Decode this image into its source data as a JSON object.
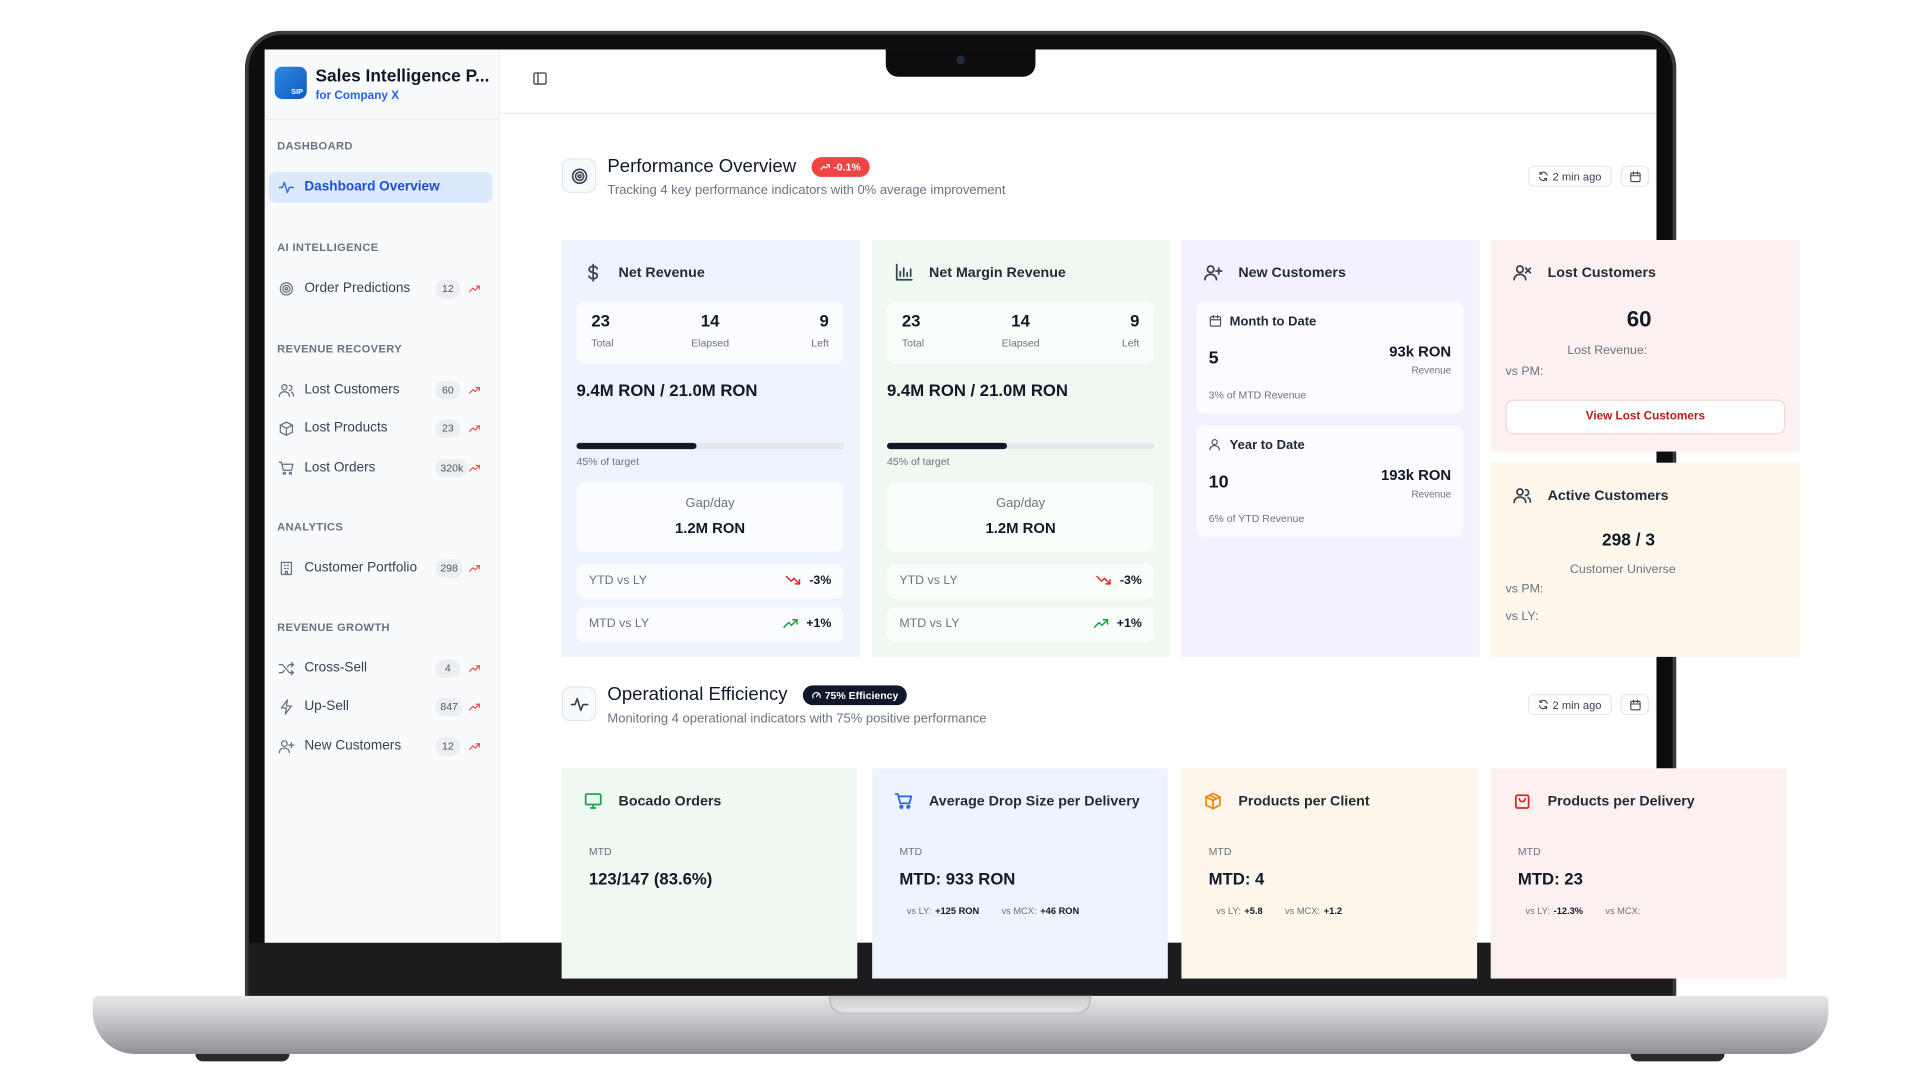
{
  "sidebar": {
    "logo": "SIP",
    "app_name": "Sales Intelligence P...",
    "subtitle": "for Company X",
    "sections": [
      {
        "title": "DASHBOARD",
        "items": [
          {
            "label": "Dashboard Overview"
          }
        ]
      },
      {
        "title": "AI INTELLIGENCE",
        "items": [
          {
            "label": "Order Predictions",
            "badge": "12"
          }
        ]
      },
      {
        "title": "REVENUE RECOVERY",
        "items": [
          {
            "label": "Lost Customers",
            "badge": "60"
          },
          {
            "label": "Lost Products",
            "badge": "23"
          },
          {
            "label": "Lost Orders",
            "badge": "320k"
          }
        ]
      },
      {
        "title": "ANALYTICS",
        "items": [
          {
            "label": "Customer Portfolio",
            "badge": "298"
          }
        ]
      },
      {
        "title": "REVENUE GROWTH",
        "items": [
          {
            "label": "Cross-Sell",
            "badge": "4"
          },
          {
            "label": "Up-Sell",
            "badge": "847"
          },
          {
            "label": "New Customers",
            "badge": "12"
          }
        ]
      }
    ]
  },
  "performance": {
    "title": "Performance Overview",
    "badge": "-0.1%",
    "subtitle": "Tracking 4 key performance indicators with 0% average improvement",
    "updated": "2 min ago",
    "net_revenue": {
      "title": "Net Revenue",
      "stats": [
        {
          "value": "23",
          "label": "Total"
        },
        {
          "value": "14",
          "label": "Elapsed"
        },
        {
          "value": "9",
          "label": "Left"
        }
      ],
      "amount": "9.4M RON / 21.0M RON",
      "progress": 45,
      "progress_label": "45% of target",
      "gap_label": "Gap/day",
      "gap_value": "1.2M RON",
      "comparisons": [
        {
          "label": "YTD vs LY",
          "value": "-3%"
        },
        {
          "label": "MTD vs LY",
          "value": "+1%"
        }
      ]
    },
    "net_margin_revenue": {
      "title": "Net Margin Revenue",
      "stats": [
        {
          "value": "23",
          "label": "Total"
        },
        {
          "value": "14",
          "label": "Elapsed"
        },
        {
          "value": "9",
          "label": "Left"
        }
      ],
      "amount": "9.4M RON / 21.0M RON",
      "progress": 45,
      "progress_label": "45% of target",
      "gap_label": "Gap/day",
      "gap_value": "1.2M RON",
      "comparisons": [
        {
          "label": "YTD vs LY",
          "value": "-3%"
        },
        {
          "label": "MTD vs LY",
          "value": "+1%"
        }
      ]
    },
    "new_customers": {
      "title": "New Customers",
      "periods": [
        {
          "title": "Month to Date",
          "count": "5",
          "revenue": "93k RON",
          "revenue_label": "Revenue",
          "share": "3% of MTD Revenue"
        },
        {
          "title": "Year to Date",
          "count": "10",
          "revenue": "193k RON",
          "revenue_label": "Revenue",
          "share": "6% of YTD Revenue"
        }
      ]
    },
    "lost_customers": {
      "title": "Lost Customers",
      "count": "60",
      "lost_revenue": "Lost Revenue:",
      "vs_pm": "vs PM:",
      "button": "View Lost Customers"
    },
    "active_customers": {
      "title": "Active Customers",
      "count": "298 / 3",
      "caption": "Customer Universe",
      "vs_pm": "vs PM:",
      "vs_ly": "vs LY:"
    }
  },
  "operational": {
    "title": "Operational Efficiency",
    "badge": "75% Efficiency",
    "subtitle": "Monitoring 4 operational indicators with 75% positive performance",
    "updated": "2 min ago",
    "cards": [
      {
        "title": "Bocado Orders",
        "period": "MTD",
        "value": "123/147 (83.6%)"
      },
      {
        "title": "Average Drop Size per Delivery",
        "period": "MTD",
        "value": "MTD: 933 RON",
        "comparisons": [
          {
            "label": "vs LY:",
            "value": "+125 RON"
          },
          {
            "label": "vs MCX:",
            "value": "+46 RON"
          }
        ]
      },
      {
        "title": "Products per Client",
        "period": "MTD",
        "value": "MTD: 4",
        "comparisons": [
          {
            "label": "vs LY:",
            "value": "+5.8"
          },
          {
            "label": "vs MCX:",
            "value": "+1.2"
          }
        ]
      },
      {
        "title": "Products per Delivery",
        "period": "MTD",
        "value": "MTD: 23",
        "comparisons": [
          {
            "label": "vs LY:",
            "value": "-12.3%"
          },
          {
            "label": "vs MCX:"
          }
        ]
      }
    ]
  }
}
